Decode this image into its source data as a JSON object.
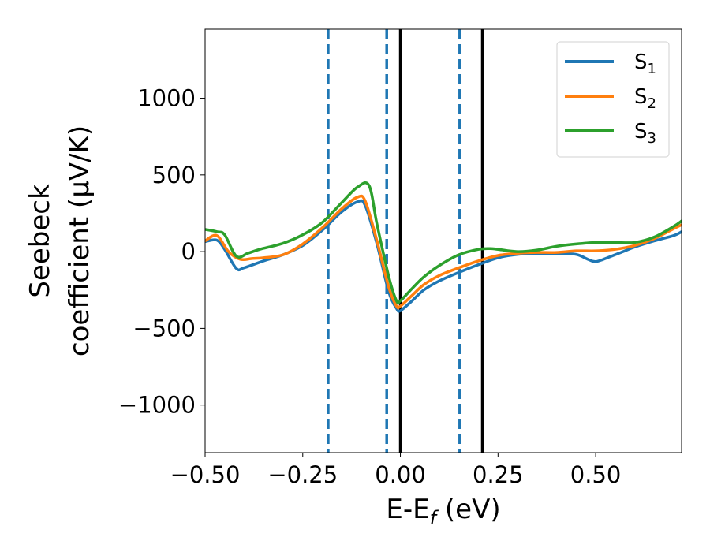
{
  "chart_data": {
    "type": "line",
    "title": "",
    "xlabel": "E-E_f (eV)",
    "xlabel_parts": {
      "base": "E-E",
      "sub": "f",
      "tail": " (eV)"
    },
    "ylabel": "Seebeck coefficient (μV/K)",
    "ylabel_lines": [
      "Seebeck",
      "coefficient  (μV/K)"
    ],
    "xlim": [
      -0.5,
      0.72
    ],
    "ylim": [
      -1310,
      1450
    ],
    "xticks": [
      -0.5,
      -0.25,
      0.0,
      0.25,
      0.5
    ],
    "xtick_labels": [
      "−0.50",
      "−0.25",
      "0.00",
      "0.25",
      "0.50"
    ],
    "yticks": [
      -1000,
      -500,
      0,
      500,
      1000
    ],
    "ytick_labels": [
      "−1000",
      "−500",
      "0",
      "500",
      "1000"
    ],
    "grid": false,
    "legend_position": "top-right",
    "series": [
      {
        "name": "S1",
        "name_base": "S",
        "name_sub": "1",
        "color": "#1f77b4",
        "x": [
          -0.5,
          -0.47,
          -0.45,
          -0.42,
          -0.4,
          -0.35,
          -0.3,
          -0.25,
          -0.2,
          -0.15,
          -0.11,
          -0.09,
          -0.06,
          -0.03,
          -0.01,
          0.0,
          0.03,
          0.06,
          0.1,
          0.15,
          0.2,
          0.25,
          0.3,
          0.35,
          0.4,
          0.45,
          0.48,
          0.5,
          0.53,
          0.57,
          0.6,
          0.65,
          0.7,
          0.72
        ],
        "y": [
          65,
          75,
          15,
          -110,
          -105,
          -60,
          -20,
          40,
          140,
          260,
          325,
          300,
          50,
          -260,
          -370,
          -385,
          -320,
          -250,
          -190,
          -135,
          -85,
          -40,
          -18,
          -12,
          -12,
          -18,
          -50,
          -65,
          -40,
          0,
          30,
          70,
          105,
          130
        ]
      },
      {
        "name": "S2",
        "name_base": "S",
        "name_sub": "2",
        "color": "#ff7f0e",
        "x": [
          -0.5,
          -0.47,
          -0.44,
          -0.41,
          -0.38,
          -0.35,
          -0.3,
          -0.25,
          -0.2,
          -0.15,
          -0.11,
          -0.09,
          -0.06,
          -0.03,
          -0.01,
          0.0,
          0.03,
          0.06,
          0.1,
          0.15,
          0.2,
          0.25,
          0.3,
          0.35,
          0.4,
          0.45,
          0.5,
          0.55,
          0.6,
          0.65,
          0.7,
          0.72
        ],
        "y": [
          70,
          105,
          0,
          -50,
          -45,
          -40,
          -20,
          50,
          155,
          280,
          355,
          330,
          70,
          -230,
          -355,
          -355,
          -285,
          -215,
          -155,
          -105,
          -60,
          -25,
          -10,
          -5,
          -5,
          5,
          5,
          15,
          40,
          85,
          150,
          175
        ]
      },
      {
        "name": "S3",
        "name_base": "S",
        "name_sub": "3",
        "color": "#2ca02c",
        "x": [
          -0.5,
          -0.47,
          -0.45,
          -0.42,
          -0.39,
          -0.36,
          -0.3,
          -0.25,
          -0.2,
          -0.15,
          -0.11,
          -0.08,
          -0.06,
          -0.03,
          -0.01,
          0.0,
          0.03,
          0.06,
          0.1,
          0.15,
          0.2,
          0.23,
          0.25,
          0.3,
          0.35,
          0.4,
          0.45,
          0.5,
          0.55,
          0.6,
          0.65,
          0.7,
          0.72
        ],
        "y": [
          145,
          130,
          110,
          -30,
          -10,
          15,
          55,
          110,
          190,
          320,
          420,
          430,
          180,
          -160,
          -320,
          -320,
          -240,
          -165,
          -90,
          -20,
          15,
          20,
          15,
          0,
          10,
          35,
          50,
          60,
          60,
          60,
          95,
          165,
          200
        ]
      }
    ],
    "vlines": [
      {
        "x": -0.185,
        "style": "dashed",
        "color": "#1f77b4"
      },
      {
        "x": -0.035,
        "style": "dashed",
        "color": "#1f77b4"
      },
      {
        "x": 0.152,
        "style": "dashed",
        "color": "#1f77b4"
      },
      {
        "x": 0.0,
        "style": "solid",
        "color": "#000000"
      },
      {
        "x": 0.21,
        "style": "solid",
        "color": "#000000"
      }
    ]
  }
}
